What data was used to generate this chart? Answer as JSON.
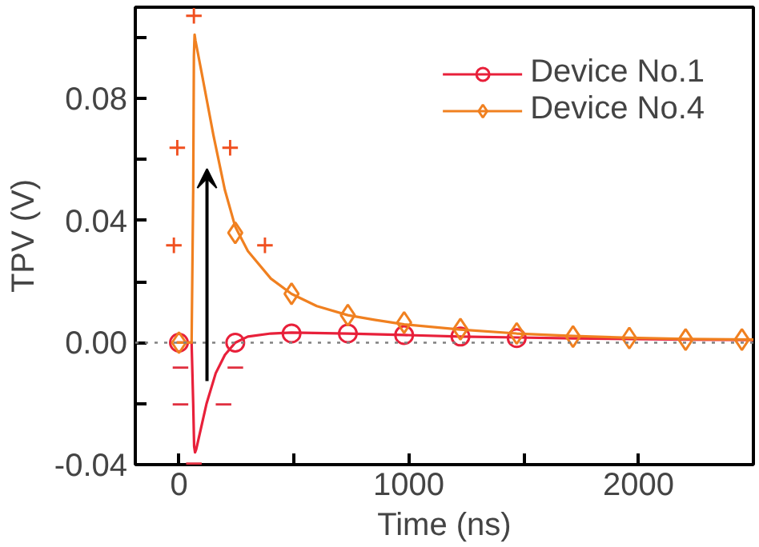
{
  "chart_data": {
    "type": "line",
    "xlabel": "Time (ns)",
    "ylabel": "TPV (V)",
    "xlim": [
      -190,
      2500
    ],
    "ylim": [
      -0.04,
      0.11
    ],
    "xticks": [
      0,
      {
        "value": 500,
        "label": null
      },
      1000,
      {
        "value": 1500,
        "label": null
      },
      2000
    ],
    "yticks": [
      -0.04,
      {
        "value": -0.02,
        "label": null
      },
      {
        "value": 0,
        "label": "0.00"
      },
      {
        "value": 0.02,
        "label": null
      },
      0.04,
      {
        "value": 0.06,
        "label": null
      },
      0.08,
      {
        "value": 0.1,
        "label": null
      }
    ],
    "legend": "top right",
    "line_style": "solid",
    "ref_lines": [
      {
        "axis": "y",
        "value": 0,
        "color": "#808080",
        "line_style": "dotted"
      }
    ],
    "series": [
      {
        "name": "Device No.1",
        "color": "#e8203a",
        "x": [
          -10,
          55,
          62,
          66,
          70,
          75,
          90,
          120,
          160,
          200,
          245,
          300,
          400,
          490,
          735,
          980,
          1225,
          1470,
          1715,
          1960,
          2205,
          2500
        ],
        "values": [
          0,
          0,
          -0.02,
          -0.034,
          -0.036,
          -0.035,
          -0.03,
          -0.02,
          -0.01,
          -0.004,
          0,
          0.002,
          0.003,
          0.0033,
          0.003,
          0.0025,
          0.002,
          0.0017,
          0.0014,
          0.0012,
          0.001,
          0.0009
        ]
      },
      {
        "type": "scatter",
        "marker": "circle",
        "color": "#e8203a",
        "x": [
          0,
          245,
          490,
          735,
          980,
          1225,
          1470
        ],
        "values": [
          0,
          0,
          0.003,
          0.003,
          0.0025,
          0.002,
          0.0015
        ]
      },
      {
        "name": "Device No.4",
        "color": "#f08020",
        "x": [
          -10,
          55,
          62,
          65,
          68,
          72,
          100,
          150,
          200,
          245,
          300,
          400,
          490,
          600,
          735,
          850,
          980,
          1225,
          1470,
          1715,
          1960,
          2205,
          2500
        ],
        "values": [
          0,
          0,
          0.05,
          0.094,
          0.101,
          0.099,
          0.088,
          0.068,
          0.05,
          0.038,
          0.03,
          0.021,
          0.016,
          0.012,
          0.009,
          0.0075,
          0.006,
          0.0043,
          0.003,
          0.0022,
          0.0016,
          0.0012,
          0.001
        ]
      },
      {
        "type": "scatter",
        "marker": "diamond",
        "color": "#f08020",
        "x": [
          0,
          245,
          490,
          735,
          980,
          1225,
          1470,
          1715,
          1960,
          2205,
          2450
        ],
        "values": [
          0,
          0.036,
          0.016,
          0.009,
          0.0066,
          0.0044,
          0.003,
          0.002,
          0.0015,
          0.001,
          0.001
        ]
      }
    ],
    "annotations": [
      "+",
      "+",
      "+",
      "+",
      "+",
      "−",
      "−",
      "−",
      "−",
      "−"
    ]
  }
}
